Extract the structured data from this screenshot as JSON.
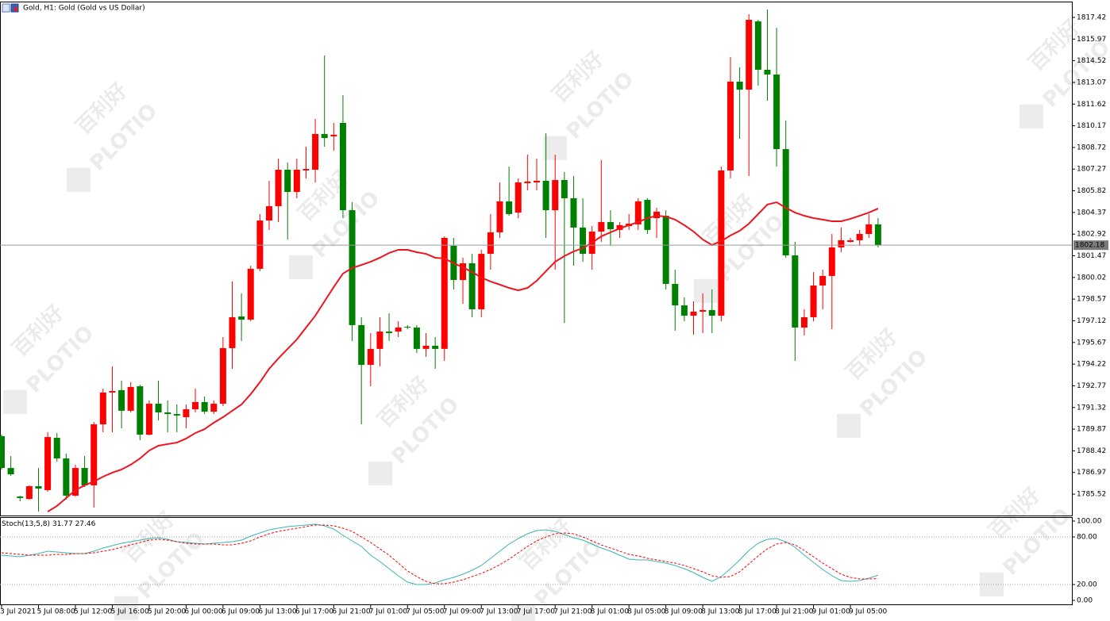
{
  "watermark": {
    "brand": "PLOTIO",
    "name": "百利好"
  },
  "chart_data": [
    {
      "type": "candlestick",
      "title": "Gold, H1:  Gold (Gold vs US Dollar)",
      "categories": [
        "3 Jul 2021",
        null,
        null,
        null,
        "5 Jul 08:00",
        null,
        null,
        null,
        "5 Jul 12:00",
        null,
        null,
        null,
        "5 Jul 16:00",
        null,
        null,
        null,
        "5 Jul 20:00",
        null,
        null,
        null,
        "6 Jul 00:00",
        null,
        null,
        null,
        "6 Jul 09:00",
        null,
        null,
        null,
        "6 Jul 13:00",
        null,
        null,
        null,
        "6 Jul 17:00",
        null,
        null,
        null,
        "6 Jul 21:00",
        null,
        null,
        null,
        "7 Jul 01:00",
        null,
        null,
        null,
        "7 Jul 05:00",
        null,
        null,
        null,
        "7 Jul 09:00",
        null,
        null,
        null,
        "7 Jul 13:00",
        null,
        null,
        null,
        "7 Jul 17:00",
        null,
        null,
        null,
        "7 Jul 21:00",
        null,
        null,
        null,
        "8 Jul 01:00",
        null,
        null,
        null,
        "8 Jul 05:00",
        null,
        null,
        null,
        "8 Jul 09:00",
        null,
        null,
        null,
        "8 Jul 13:00",
        null,
        null,
        null,
        "8 Jul 17:00",
        null,
        null,
        null,
        "8 Jul 21:00",
        null,
        null,
        null,
        "9 Jul 01:00",
        null,
        null,
        null,
        "9 Jul 05:00",
        null,
        null,
        null
      ],
      "open": [
        1789.4,
        1787.27,
        1785.36,
        1785.2,
        1786.05,
        1785.79,
        1789.29,
        1787.91,
        1785.42,
        1787.27,
        1786.11,
        1790.19,
        1792.32,
        1792.48,
        1791.1,
        1792.74,
        1789.5,
        1791.57,
        1790.99,
        1790.88,
        1790.67,
        1791.2,
        1791.68,
        1791.04,
        1791.57,
        1795.29,
        1797.41,
        1797.2,
        1800.6,
        1803.83,
        1804.79,
        1807.23,
        1805.74,
        1807.18,
        1807.23,
        1809.62,
        1809.46,
        1810.36,
        1804.52,
        1796.83,
        1794.17,
        1795.24,
        1796.4,
        1796.4,
        1796.72,
        1796.67,
        1795.24,
        1795.45,
        1795.24,
        1802.14,
        1799.85,
        1800.97,
        1797.89,
        1801.6,
        1803.04,
        1805.11,
        1804.36,
        1806.33,
        1806.38,
        1806.49,
        1804.52,
        1806.54,
        1805.32,
        1803.36,
        1801.6,
        1803.09,
        1803.73,
        1803.2,
        1803.46,
        1803.57,
        1805.21,
        1803.99,
        1804.15,
        1799.59,
        1798.15,
        1797.46,
        1797.73,
        1797.84,
        1797.46,
        1807.18,
        1813.12,
        1812.59,
        1817.16,
        1813.92,
        1813.6,
        1808.61,
        1801.5,
        1796.67,
        1797.36,
        1799.48,
        1800.12,
        1802.03,
        1802.4,
        1802.51,
        1802.93,
        1803.57
      ],
      "high": [
        1789.5,
        1788.07,
        1785.42,
        1786.11,
        1787.27,
        1789.66,
        1789.61,
        1788.23,
        1787.49,
        1788.07,
        1790.35,
        1792.58,
        1794.07,
        1793.11,
        1793.01,
        1792.85,
        1791.79,
        1793.11,
        1791.79,
        1791.52,
        1791.52,
        1792.58,
        1792.05,
        1791.79,
        1796.03,
        1799.75,
        1798.95,
        1800.81,
        1804.26,
        1806.49,
        1807.97,
        1807.71,
        1807.97,
        1808.77,
        1810.63,
        1814.87,
        1810.36,
        1812.22,
        1805.05,
        1797.36,
        1796.3,
        1797.36,
        1797.62,
        1797.09,
        1796.83,
        1796.83,
        1796.3,
        1796.03,
        1802.77,
        1802.67,
        1801.34,
        1801.6,
        1801.87,
        1804.26,
        1806.38,
        1807.44,
        1806.65,
        1808.24,
        1807.97,
        1809.67,
        1808.24,
        1807.07,
        1806.81,
        1805.32,
        1803.46,
        1807.87,
        1804.52,
        1803.73,
        1804.26,
        1805.32,
        1805.32,
        1804.68,
        1804.52,
        1800.54,
        1798.69,
        1798.42,
        1798.95,
        1799.22,
        1807.44,
        1814.77,
        1814.08,
        1817.63,
        1817.26,
        1817.95,
        1816.73,
        1810.52,
        1802.4,
        1797.89,
        1800.38,
        1800.54,
        1802.93,
        1803.36,
        1802.67,
        1803.2,
        1804.26,
        1803.99
      ],
      "low": [
        1787.17,
        1786.74,
        1785.04,
        1785.15,
        1784.35,
        1785.68,
        1787.7,
        1785.15,
        1785.36,
        1786.0,
        1784.62,
        1789.66,
        1789.66,
        1789.93,
        1790.99,
        1789.13,
        1789.45,
        1790.46,
        1789.66,
        1789.66,
        1789.93,
        1790.99,
        1790.88,
        1790.88,
        1791.41,
        1793.91,
        1795.77,
        1797.09,
        1800.44,
        1803.2,
        1803.73,
        1802.56,
        1805.32,
        1806.65,
        1806.38,
        1808.77,
        1808.5,
        1803.99,
        1795.77,
        1790.19,
        1792.74,
        1794.07,
        1795.77,
        1796.03,
        1796.56,
        1794.97,
        1794.71,
        1793.91,
        1794.44,
        1799.22,
        1798.26,
        1797.36,
        1797.36,
        1800.54,
        1802.67,
        1804.15,
        1803.99,
        1805.85,
        1805.85,
        1802.67,
        1800.54,
        1796.98,
        1800.81,
        1801.07,
        1800.54,
        1802.4,
        1802.14,
        1802.67,
        1803.2,
        1803.2,
        1802.93,
        1802.67,
        1799.22,
        1796.46,
        1797.09,
        1796.19,
        1796.3,
        1796.3,
        1797.09,
        1806.65,
        1809.3,
        1806.81,
        1812.86,
        1811.85,
        1807.44,
        1801.34,
        1794.44,
        1796.14,
        1797.09,
        1797.89,
        1796.56,
        1801.71,
        1802.35,
        1802.14,
        1802.67,
        1802.03
      ],
      "close": [
        1787.27,
        1786.85,
        1785.26,
        1786.05,
        1785.89,
        1789.34,
        1787.91,
        1785.42,
        1787.27,
        1786.11,
        1790.19,
        1792.32,
        1792.42,
        1791.1,
        1792.69,
        1789.5,
        1791.57,
        1790.99,
        1790.88,
        1790.78,
        1791.2,
        1791.68,
        1791.04,
        1791.57,
        1795.29,
        1797.36,
        1797.2,
        1800.6,
        1803.83,
        1804.79,
        1807.23,
        1805.74,
        1807.23,
        1807.28,
        1809.62,
        1809.35,
        1809.57,
        1804.52,
        1796.83,
        1794.17,
        1795.24,
        1796.4,
        1796.3,
        1796.67,
        1796.67,
        1795.24,
        1795.45,
        1795.24,
        1802.67,
        1799.85,
        1800.97,
        1797.89,
        1801.6,
        1803.04,
        1805.11,
        1804.26,
        1806.38,
        1806.44,
        1806.49,
        1804.52,
        1806.54,
        1805.32,
        1803.36,
        1801.6,
        1803.09,
        1803.73,
        1803.25,
        1803.52,
        1803.62,
        1805.11,
        1803.2,
        1804.42,
        1799.59,
        1798.15,
        1797.46,
        1797.73,
        1797.84,
        1797.46,
        1807.18,
        1813.12,
        1812.59,
        1817.26,
        1813.92,
        1813.6,
        1808.61,
        1801.5,
        1796.67,
        1797.36,
        1799.48,
        1800.12,
        1802.03,
        1802.51,
        1802.51,
        1802.93,
        1803.57,
        1802.18
      ],
      "up_color": "#ff0000",
      "down_color": "#008000",
      "overlays": [
        {
          "type": "line",
          "color": "#f0141e",
          "values": [
            null,
            null,
            null,
            null,
            null,
            1784.35,
            1784.73,
            1785.26,
            1785.79,
            1786.11,
            1786.37,
            1786.69,
            1786.96,
            1787.17,
            1787.49,
            1787.91,
            1788.44,
            1788.76,
            1788.87,
            1788.97,
            1789.24,
            1789.61,
            1789.87,
            1790.3,
            1790.67,
            1791.1,
            1791.52,
            1792.21,
            1793.01,
            1793.91,
            1794.6,
            1795.24,
            1795.87,
            1796.67,
            1797.46,
            1798.42,
            1799.38,
            1800.28,
            1800.65,
            1800.86,
            1801.07,
            1801.34,
            1801.66,
            1801.87,
            1801.87,
            1801.71,
            1801.6,
            1801.34,
            1801.29,
            1800.97,
            1800.7,
            1800.38,
            1800.01,
            1799.75,
            1799.54,
            1799.32,
            1799.16,
            1799.32,
            1799.8,
            1800.44,
            1801.07,
            1801.45,
            1801.76,
            1801.98,
            1802.35,
            1802.77,
            1803.04,
            1803.3,
            1803.52,
            1803.73,
            1803.99,
            1804.15,
            1804.1,
            1803.89,
            1803.52,
            1803.09,
            1802.56,
            1802.19,
            1802.45,
            1802.83,
            1803.14,
            1803.62,
            1804.26,
            1804.9,
            1805.05,
            1804.68,
            1804.36,
            1804.15,
            1803.99,
            1803.89,
            1803.78,
            1803.78,
            1803.94,
            1804.15,
            1804.36,
            1804.63
          ]
        }
      ],
      "ylim": [
        1784.09,
        1818.48
      ],
      "yticks": [
        1817.42,
        1815.97,
        1814.52,
        1813.07,
        1811.62,
        1810.17,
        1808.72,
        1807.27,
        1805.82,
        1804.37,
        1802.92,
        1801.47,
        1800.02,
        1798.57,
        1797.12,
        1795.67,
        1794.22,
        1792.77,
        1791.32,
        1789.87,
        1788.42,
        1786.97,
        1785.52
      ],
      "last_price_line": true
    },
    {
      "type": "line",
      "title": "Stoch(13,5,8)",
      "series": [
        {
          "color": "#3cb4b4",
          "values": [
            57,
            56,
            55,
            57,
            59,
            62,
            61,
            60,
            59,
            59,
            62,
            66,
            69,
            72,
            74,
            76,
            78,
            79,
            77,
            74,
            73,
            72,
            71,
            72,
            73,
            74,
            76,
            81,
            85,
            89,
            91,
            93,
            94,
            95,
            96,
            94,
            90,
            82,
            75,
            68,
            57,
            49,
            40,
            31,
            23,
            20,
            20,
            22,
            26,
            29,
            33,
            38,
            44,
            53,
            62,
            71,
            78,
            84,
            88,
            89,
            87,
            83,
            79,
            76,
            71,
            66,
            62,
            57,
            52,
            51,
            51,
            49,
            47,
            44,
            40,
            35,
            29,
            24,
            30,
            40,
            51,
            63,
            72,
            77,
            78,
            74,
            67,
            57,
            48,
            39,
            31,
            25,
            24,
            25,
            28,
            31.77
          ]
        },
        {
          "color": "#ff0000",
          "dash": true,
          "values": [
            60,
            59,
            58,
            57,
            57,
            57,
            58,
            58,
            59,
            59,
            60,
            62,
            64,
            67,
            70,
            73,
            76,
            77,
            76,
            74,
            72,
            71,
            71,
            71,
            70,
            70,
            72,
            75,
            80,
            84,
            87,
            89,
            91,
            93,
            95,
            95,
            94,
            91,
            87,
            80,
            73,
            65,
            57,
            47,
            37,
            30,
            24,
            21,
            21,
            23,
            26,
            30,
            34,
            39,
            45,
            52,
            60,
            68,
            75,
            80,
            84,
            85,
            84,
            80,
            75,
            70,
            66,
            62,
            58,
            56,
            53,
            51,
            49,
            47,
            44,
            40,
            36,
            31,
            29,
            30,
            36,
            46,
            56,
            65,
            71,
            73,
            70,
            63,
            55,
            47,
            40,
            33,
            29,
            27,
            27,
            27.46
          ]
        }
      ],
      "ylim": [
        -5,
        105
      ],
      "yticks": [
        {
          "value": 100,
          "label": "100.00"
        },
        {
          "value": 80,
          "label": "80.00"
        },
        {
          "value": 20,
          "label": "20.00"
        },
        {
          "value": 0,
          "label": "0.00"
        }
      ],
      "levels": [
        80,
        20
      ]
    }
  ]
}
